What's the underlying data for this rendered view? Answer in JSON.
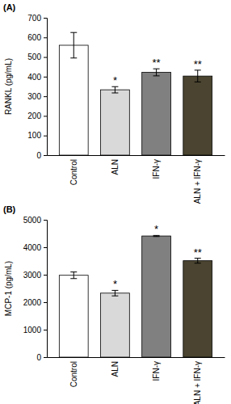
{
  "chart_data": [
    {
      "type": "bar",
      "title": "(A)",
      "y_label": "RANKL (pg/mL)",
      "categories": [
        "Control",
        "ALN",
        "IFN-γ",
        "ALN + IFN-γ"
      ],
      "values": [
        560,
        333,
        422,
        403
      ],
      "errors": [
        65,
        16,
        18,
        30
      ],
      "significance": [
        null,
        "*",
        "**",
        "**"
      ],
      "colors": [
        "#ffffff",
        "#d9d9d9",
        "#808080",
        "#4a4430"
      ],
      "ylim": [
        0,
        700
      ],
      "yticks": [
        0,
        100,
        200,
        300,
        400,
        500,
        600,
        700
      ]
    },
    {
      "type": "bar",
      "title": "(B)",
      "y_label": "MCP-1 (pg/mL)",
      "categories": [
        "Control",
        "ALN",
        "IFN-γ",
        "ALN + IFN-γ"
      ],
      "values": [
        2980,
        2330,
        4410,
        3510
      ],
      "errors": [
        120,
        100,
        20,
        90
      ],
      "significance": [
        null,
        "*",
        "*",
        "**"
      ],
      "colors": [
        "#ffffff",
        "#d9d9d9",
        "#808080",
        "#4a4430"
      ],
      "ylim": [
        0,
        5000
      ],
      "yticks": [
        0,
        1000,
        2000,
        3000,
        4000,
        5000
      ]
    }
  ]
}
